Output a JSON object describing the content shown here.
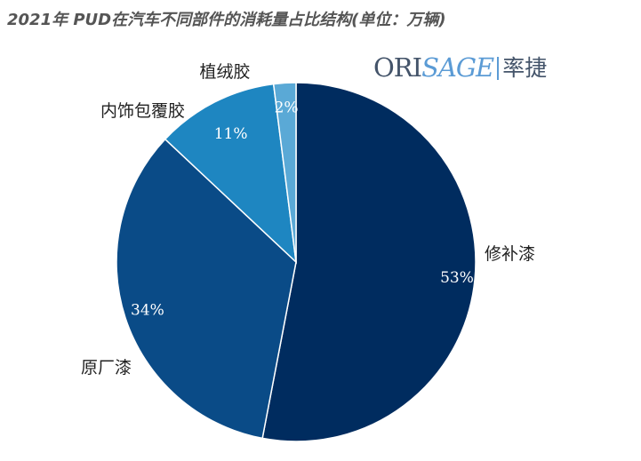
{
  "title": "2021年 PUD在汽车不同部件的消耗量占比结构(单位：万辆)",
  "logo": {
    "word_ori": "ORI",
    "word_sage": "SAGE",
    "chinese": "率捷"
  },
  "chart_data": {
    "type": "pie",
    "title": "2021年 PUD在汽车不同部件的消耗量占比结构(单位：万辆)",
    "start_angle_deg": 0,
    "direction": "clockwise",
    "slices": [
      {
        "label": "修补漆",
        "value": 53,
        "value_label": "53%",
        "color": "#002c5f"
      },
      {
        "label": "原厂漆",
        "value": 34,
        "value_label": "34%",
        "color": "#0a4b87"
      },
      {
        "label": "内饰包覆胶",
        "value": 11,
        "value_label": "11%",
        "color": "#1e86c1"
      },
      {
        "label": "植绒胶",
        "value": 2,
        "value_label": "2%",
        "color": "#5aa9d6"
      }
    ]
  }
}
